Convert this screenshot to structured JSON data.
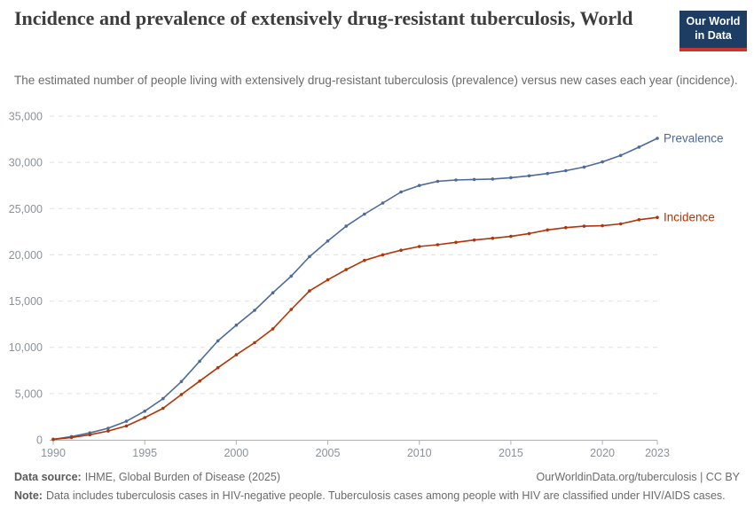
{
  "header": {
    "title": "Incidence and prevalence of extensively drug-resistant tuberculosis, World",
    "subtitle": "The estimated number of people living with extensively drug-resistant tuberculosis (prevalence) versus new cases each year (incidence).",
    "logo": {
      "line1": "Our World",
      "line2": "in Data",
      "bg_color": "#1d3d63",
      "stripe_color": "#cf352e"
    }
  },
  "chart_data": {
    "type": "line",
    "title": "Incidence and prevalence of extensively drug-resistant tuberculosis, World",
    "xlabel": "",
    "ylabel": "",
    "x": [
      1990,
      1991,
      1992,
      1993,
      1994,
      1995,
      1996,
      1997,
      1998,
      1999,
      2000,
      2001,
      2002,
      2003,
      2004,
      2005,
      2006,
      2007,
      2008,
      2009,
      2010,
      2011,
      2012,
      2013,
      2014,
      2015,
      2016,
      2017,
      2018,
      2019,
      2020,
      2021,
      2022,
      2023
    ],
    "series": [
      {
        "name": "Prevalence",
        "color": "#4C6A9C",
        "values": [
          60,
          350,
          750,
          1250,
          2000,
          3100,
          4450,
          6300,
          8500,
          10700,
          12400,
          14000,
          15900,
          17700,
          19800,
          21500,
          23100,
          24400,
          25600,
          26800,
          27500,
          27950,
          28100,
          28150,
          28200,
          28350,
          28550,
          28800,
          29100,
          29500,
          30050,
          30750,
          31650,
          32600
        ]
      },
      {
        "name": "Incidence",
        "color": "#B13507",
        "values": [
          40,
          250,
          550,
          950,
          1500,
          2400,
          3400,
          4900,
          6350,
          7800,
          9200,
          10500,
          12000,
          14100,
          16100,
          17300,
          18400,
          19400,
          20000,
          20500,
          20900,
          21100,
          21350,
          21600,
          21800,
          22000,
          22300,
          22700,
          22950,
          23100,
          23150,
          23350,
          23800,
          24050
        ]
      }
    ],
    "ylim": [
      0,
      35000
    ],
    "yticks": [
      0,
      5000,
      10000,
      15000,
      20000,
      25000,
      30000,
      35000
    ],
    "xticks": [
      1990,
      1995,
      2000,
      2005,
      2010,
      2015,
      2020,
      2023
    ],
    "grid": "horizontal-dashed",
    "legend_position": "line-end-labels",
    "colors": {
      "grid": "#e0e0e0",
      "axis": "#b0b0b0",
      "tick_label": "#8b929b"
    }
  },
  "footer": {
    "datasource_label": "Data source:",
    "datasource_text": "IHME, Global Burden of Disease (2025)",
    "attribution": "OurWorldinData.org/tuberculosis | CC BY",
    "note_label": "Note:",
    "note_text": "Data includes tuberculosis cases in HIV-negative people. Tuberculosis cases among people with HIV are classified under HIV/AIDS cases."
  }
}
